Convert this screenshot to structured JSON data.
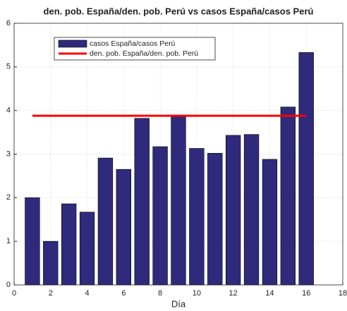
{
  "chart_data": {
    "type": "bar",
    "title": "den. pob. España/den. pob. Perú vs casos España/casos Perú",
    "x_label": "Día",
    "x": [
      1,
      2,
      3,
      4,
      5,
      6,
      7,
      8,
      9,
      10,
      11,
      12,
      13,
      14,
      15,
      16
    ],
    "series": [
      {
        "name": "casos España/casos Perú",
        "type": "bar",
        "color": "#2f2a7c",
        "values": [
          2.0,
          1.0,
          1.86,
          1.67,
          2.91,
          2.65,
          3.82,
          3.17,
          3.86,
          3.13,
          3.02,
          3.43,
          3.45,
          2.88,
          4.08,
          5.33
        ]
      },
      {
        "name": "den. pob. España/den. pob. Perú",
        "type": "line",
        "color": "#ff0000",
        "values": [
          3.88,
          3.88,
          3.88,
          3.88,
          3.88,
          3.88,
          3.88,
          3.88,
          3.88,
          3.88,
          3.88,
          3.88,
          3.88,
          3.88,
          3.88,
          3.88
        ]
      }
    ],
    "xlim": [
      0,
      18
    ],
    "xticks": [
      0,
      2,
      4,
      6,
      8,
      10,
      12,
      14,
      16,
      18
    ],
    "ylim": [
      0,
      6
    ],
    "yticks": [
      0,
      1,
      2,
      3,
      4,
      5,
      6
    ],
    "grid": true,
    "legend": "top-left"
  }
}
